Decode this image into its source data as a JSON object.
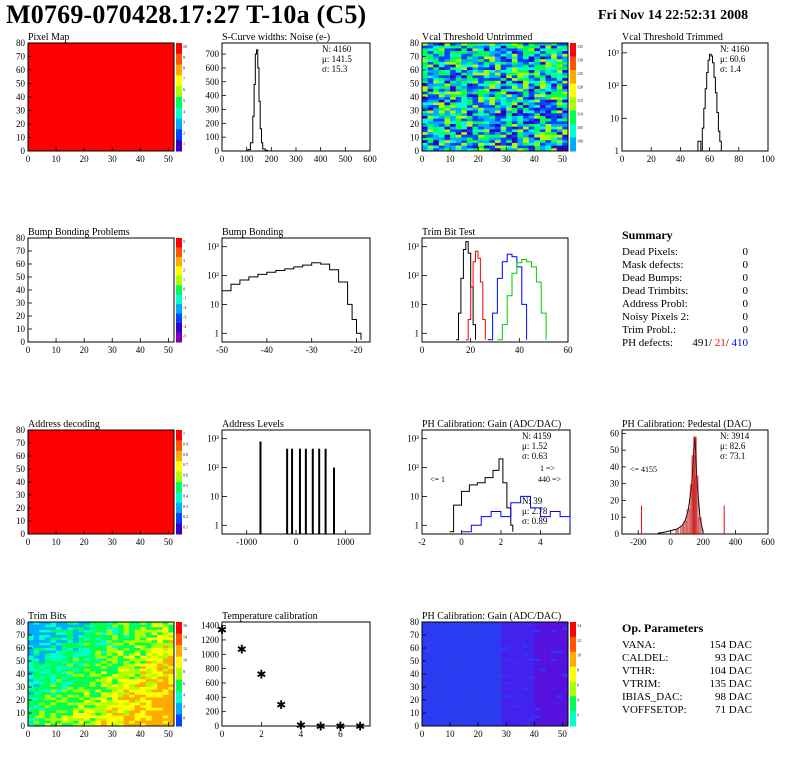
{
  "header": {
    "title": "M0769-070428.17:27 T-10a (C5)",
    "date": "Fri Nov 14 22:52:31 2008"
  },
  "summary": {
    "title": "Summary",
    "rows": [
      {
        "label": "Dead Pixels:",
        "value": "0"
      },
      {
        "label": "Mask defects:",
        "value": "0"
      },
      {
        "label": "Dead Bumps:",
        "value": "0"
      },
      {
        "label": "Dead Trimbits:",
        "value": "0"
      },
      {
        "label": "Address Probl:",
        "value": "0"
      },
      {
        "label": "Noisy Pixels 2:",
        "value": "0"
      },
      {
        "label": "Trim Probl.:",
        "value": "0"
      }
    ],
    "ph_label": "PH defects:",
    "ph_values": {
      "a": "491",
      "b": "21",
      "c": "410"
    }
  },
  "op_params": {
    "title": "Op. Parameters",
    "rows": [
      {
        "label": "VANA:",
        "value": "154 DAC"
      },
      {
        "label": "CALDEL:",
        "value": "93 DAC"
      },
      {
        "label": "VTHR:",
        "value": "104 DAC"
      },
      {
        "label": "VTRIM:",
        "value": "135 DAC"
      },
      {
        "label": "IBIAS_DAC:",
        "value": "98 DAC"
      },
      {
        "label": "VOFFSETOP:",
        "value": "71 DAC"
      }
    ]
  },
  "colors": {
    "black": "#000000",
    "red": "#ff0000",
    "blue": "#0000ff",
    "green": "#00cc00",
    "darkred": "#c00000"
  },
  "chart_data": [
    {
      "id": "pixel-map",
      "type": "heatmap",
      "title": "Pixel Map",
      "xlim": [
        0,
        52
      ],
      "ylim": [
        0,
        80
      ],
      "xticks": [
        0,
        10,
        20,
        30,
        40,
        50
      ],
      "yticks": [
        0,
        10,
        20,
        30,
        40,
        50,
        60,
        70,
        80
      ],
      "palette_labels": [
        "10",
        "9",
        "8",
        "7",
        "6",
        "5",
        "4",
        "3",
        "2",
        "1"
      ],
      "fill": "uniform-max"
    },
    {
      "id": "scurve",
      "type": "line",
      "title": "S-Curve widths: Noise (e-)",
      "xlim": [
        0,
        600
      ],
      "ylim": [
        0,
        780
      ],
      "xticks": [
        0,
        100,
        200,
        300,
        400,
        500,
        600
      ],
      "yticks": [
        0,
        100,
        200,
        300,
        400,
        500,
        600,
        700
      ],
      "stats": [
        "N: 4160",
        "μ: 141.5",
        "σ: 15.3"
      ],
      "series": [
        {
          "name": "noise",
          "color": "#000000",
          "x": [
            95,
            105,
            115,
            125,
            130,
            135,
            140,
            145,
            150,
            155,
            160,
            165,
            175,
            185
          ],
          "y": [
            0,
            10,
            60,
            250,
            480,
            700,
            730,
            600,
            360,
            160,
            60,
            15,
            4,
            0
          ]
        }
      ]
    },
    {
      "id": "vcal-untrim",
      "type": "heatmap",
      "title": "Vcal Threshold Untrimmed",
      "xlim": [
        0,
        52
      ],
      "ylim": [
        0,
        80
      ],
      "xticks": [
        0,
        10,
        20,
        30,
        40,
        50
      ],
      "yticks": [
        0,
        10,
        20,
        30,
        40,
        50,
        60,
        70,
        80
      ],
      "palette_labels": [
        "135",
        "130",
        "125",
        "120",
        "115",
        "110",
        "105",
        "100"
      ],
      "fill": "noise-mid"
    },
    {
      "id": "vcal-trim",
      "type": "line",
      "title": "Vcal Threshold Trimmed",
      "xlim": [
        0,
        100
      ],
      "ylog": true,
      "ylim": [
        1,
        2000
      ],
      "xticks": [
        0,
        20,
        40,
        60,
        80,
        100
      ],
      "ytick_labels": [
        "1",
        "10",
        "10²",
        "10³"
      ],
      "stats": [
        "N: 4160",
        "μ: 60.6",
        "σ: 1.4"
      ],
      "series": [
        {
          "name": "trimmed",
          "color": "#000000",
          "x": [
            50,
            52,
            54,
            55,
            56,
            57,
            58,
            59,
            60,
            61,
            62,
            63,
            64,
            65,
            66,
            67,
            68,
            70
          ],
          "y": [
            1,
            2,
            1,
            5,
            20,
            80,
            250,
            600,
            900,
            800,
            500,
            180,
            60,
            15,
            4,
            2,
            1,
            1
          ]
        }
      ]
    },
    {
      "id": "bump-problems",
      "type": "heatmap",
      "title": "Bump Bonding Problems",
      "xlim": [
        0,
        52
      ],
      "ylim": [
        0,
        80
      ],
      "xticks": [
        0,
        10,
        20,
        30,
        40,
        50
      ],
      "yticks": [
        0,
        10,
        20,
        30,
        40,
        50,
        60,
        70,
        80
      ],
      "palette_labels": [
        "5",
        "4",
        "3",
        "2",
        "1",
        "0",
        "-1",
        "-2",
        "-3",
        "-4",
        "-5"
      ],
      "fill": "empty"
    },
    {
      "id": "bump-bonding",
      "type": "line",
      "title": "Bump Bonding",
      "xlim": [
        -50,
        -17
      ],
      "ylog": true,
      "ylim": [
        0.5,
        2000
      ],
      "xticks": [
        -50,
        -40,
        -30,
        -20
      ],
      "ytick_labels": [
        "1",
        "10",
        "10²",
        "10³"
      ],
      "series": [
        {
          "name": "bump",
          "color": "#000000",
          "x": [
            -50,
            -48,
            -46,
            -44,
            -42,
            -40,
            -38,
            -36,
            -34,
            -32,
            -30,
            -28,
            -26,
            -24,
            -22,
            -21,
            -20,
            -19
          ],
          "y": [
            30,
            50,
            70,
            90,
            110,
            130,
            150,
            170,
            200,
            230,
            280,
            250,
            160,
            60,
            10,
            3,
            1,
            0.6
          ]
        }
      ]
    },
    {
      "id": "trim-bit-test",
      "type": "line",
      "title": "Trim Bit Test",
      "xlim": [
        0,
        60
      ],
      "ylog": true,
      "ylim": [
        0.5,
        2000
      ],
      "xticks": [
        0,
        20,
        40,
        60
      ],
      "ytick_labels": [
        "1",
        "10",
        "10²",
        "10³"
      ],
      "series": [
        {
          "name": "trim1",
          "color": "#000000",
          "x": [
            14,
            15,
            16,
            17,
            18,
            19,
            20,
            21,
            22
          ],
          "y": [
            0.6,
            5,
            80,
            800,
            1500,
            600,
            40,
            2,
            0.6
          ]
        },
        {
          "name": "trim2",
          "color": "#ff0000",
          "x": [
            18,
            19,
            20,
            21,
            22,
            23,
            24,
            25,
            26
          ],
          "y": [
            0.6,
            3,
            40,
            300,
            700,
            400,
            60,
            3,
            0.6
          ]
        },
        {
          "name": "trim3",
          "color": "#0000ff",
          "x": [
            27,
            29,
            31,
            33,
            35,
            37,
            39,
            41,
            43
          ],
          "y": [
            0.6,
            5,
            80,
            300,
            550,
            450,
            200,
            10,
            0.6
          ]
        },
        {
          "name": "trim4",
          "color": "#00cc00",
          "x": [
            31,
            33,
            35,
            37,
            39,
            41,
            43,
            45,
            47,
            49,
            51
          ],
          "y": [
            0.6,
            2,
            20,
            120,
            280,
            360,
            300,
            200,
            60,
            5,
            0.6
          ]
        }
      ]
    },
    {
      "id": "address-decoding",
      "type": "heatmap",
      "title": "Address decoding",
      "xlim": [
        0,
        52
      ],
      "ylim": [
        0,
        80
      ],
      "xticks": [
        0,
        10,
        20,
        30,
        40,
        50
      ],
      "yticks": [
        0,
        10,
        20,
        30,
        40,
        50,
        60,
        70,
        80
      ],
      "palette_labels": [
        "1",
        "0.9",
        "0.8",
        "0.7",
        "0.6",
        "0.5",
        "0.4",
        "0.3",
        "0.2",
        "0.1"
      ],
      "fill": "uniform-max"
    },
    {
      "id": "address-levels",
      "type": "bar",
      "title": "Address Levels",
      "xlim": [
        -1500,
        1500
      ],
      "ylog": true,
      "ylim": [
        0.5,
        2000
      ],
      "xticks": [
        -1000,
        0,
        1000
      ],
      "ytick_labels": [
        "1",
        "10",
        "10²",
        "10³"
      ],
      "series": [
        {
          "name": "levels",
          "color": "#000000",
          "x": [
            -720,
            -180,
            -80,
            80,
            200,
            340,
            470,
            600,
            770
          ],
          "y": [
            800,
            450,
            450,
            450,
            450,
            450,
            450,
            450,
            100
          ]
        }
      ]
    },
    {
      "id": "ph-gain",
      "type": "line",
      "title": "PH Calibration: Gain (ADC/DAC)",
      "xlim": [
        -2,
        5.5
      ],
      "ylog": true,
      "ylim": [
        0.5,
        2000
      ],
      "xticks": [
        -2,
        0,
        2,
        4
      ],
      "ytick_labels": [
        "1",
        "10",
        "10²",
        "10³"
      ],
      "stats": [
        "N: 4159",
        "μ: 1.52",
        "σ: 0.63"
      ],
      "stats2": [
        "N: 39",
        "μ: 2.78",
        "σ: 0.89"
      ],
      "annotations": [
        "<= 1",
        "1 =>",
        "440 =>"
      ],
      "series": [
        {
          "name": "gain",
          "color": "#000000",
          "x": [
            -0.6,
            -0.4,
            0,
            0.4,
            0.8,
            1.2,
            1.6,
            1.9,
            2.1,
            2.3,
            2.5,
            2.6
          ],
          "y": [
            0.6,
            5,
            15,
            25,
            30,
            45,
            80,
            200,
            30,
            4,
            1,
            0.6
          ]
        },
        {
          "name": "gain-flagged",
          "color": "#0000ff",
          "x": [
            0,
            0.5,
            1,
            1.5,
            2,
            2.5,
            3,
            3.5,
            4,
            4.5,
            5,
            5.5
          ],
          "y": [
            0.6,
            1,
            2,
            3,
            2,
            6,
            10,
            4,
            2,
            3,
            2,
            1
          ]
        }
      ]
    },
    {
      "id": "ph-pedestal",
      "type": "bar",
      "title": "PH Calibration: Pedestal (DAC)",
      "xlim": [
        -300,
        600
      ],
      "ylim": [
        0,
        62
      ],
      "xticks": [
        -200,
        0,
        200,
        400,
        600
      ],
      "yticks": [
        0,
        10,
        20,
        30,
        40,
        50,
        60
      ],
      "stats": [
        "N: 3914",
        "μ: 82.6",
        "σ: 73.1"
      ],
      "annotations": [
        "<= 4155"
      ],
      "series": [
        {
          "name": "pedestal",
          "color": "#000000",
          "x": [
            -80,
            -40,
            0,
            40,
            70,
            90,
            110,
            130,
            140,
            150,
            160,
            180,
            200
          ],
          "y": [
            0.5,
            1,
            2,
            3,
            5,
            8,
            15,
            30,
            47,
            58,
            35,
            10,
            1
          ]
        },
        {
          "name": "cuts",
          "color": "#ff0000",
          "x": [
            -180,
            330
          ],
          "y": [
            17,
            17
          ]
        }
      ]
    },
    {
      "id": "trim-bits",
      "type": "heatmap",
      "title": "Trim Bits",
      "xlim": [
        0,
        52
      ],
      "ylim": [
        0,
        80
      ],
      "xticks": [
        0,
        10,
        20,
        30,
        40,
        50
      ],
      "yticks": [
        0,
        10,
        20,
        30,
        40,
        50,
        60,
        70,
        80
      ],
      "palette_labels": [
        "16",
        "14",
        "12",
        "10",
        "8",
        "6",
        "4",
        "2",
        "0"
      ],
      "fill": "gradient"
    },
    {
      "id": "temp-cal",
      "type": "scatter",
      "title": "Temperature calibration",
      "xlim": [
        0,
        7.5
      ],
      "ylim": [
        0,
        1450
      ],
      "xticks": [
        0,
        2,
        4,
        6
      ],
      "yticks": [
        0,
        200,
        400,
        600,
        800,
        1000,
        1200,
        1400
      ],
      "series": [
        {
          "name": "temp",
          "color": "#000000",
          "x": [
            0,
            1,
            2,
            3,
            4,
            5,
            6,
            7
          ],
          "y": [
            1350,
            1080,
            730,
            310,
            20,
            10,
            10,
            10
          ]
        }
      ]
    },
    {
      "id": "ph-gain-map",
      "type": "heatmap",
      "title": "PH Calibration: Gain (ADC/DAC)",
      "xlim": [
        0,
        52
      ],
      "ylim": [
        0,
        80
      ],
      "xticks": [
        0,
        10,
        20,
        30,
        40,
        50
      ],
      "yticks": [
        0,
        10,
        20,
        30,
        40,
        50,
        60,
        70,
        80
      ],
      "palette_labels": [
        "14",
        "12",
        "10",
        "8",
        "6",
        "4",
        "2"
      ],
      "fill": "bands"
    }
  ]
}
